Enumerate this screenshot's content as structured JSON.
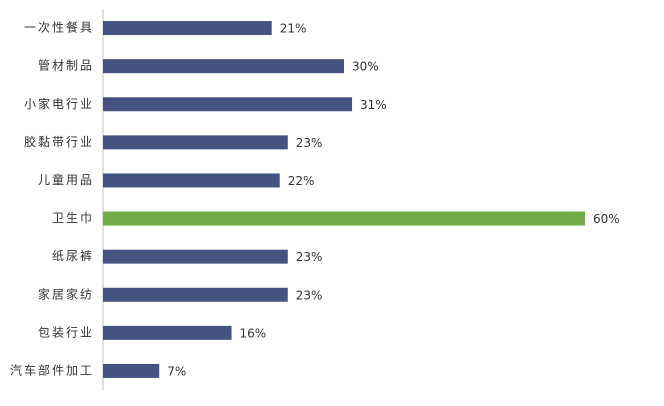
{
  "chart_data": {
    "type": "bar",
    "orientation": "horizontal",
    "categories": [
      "一次性餐具",
      "管材制品",
      "小家电行业",
      "胶黏带行业",
      "儿童用品",
      "卫生巾",
      "纸尿裤",
      "家居家纺",
      "包装行业",
      "汽车部件加工"
    ],
    "values": [
      21,
      30,
      31,
      23,
      22,
      60,
      23,
      23,
      16,
      7
    ],
    "value_labels": [
      "21%",
      "30%",
      "31%",
      "23%",
      "22%",
      "60%",
      "23%",
      "23%",
      "16%",
      "7%"
    ],
    "colors": [
      "#44537f",
      "#44537f",
      "#44537f",
      "#44537f",
      "#44537f",
      "#70ad47",
      "#44537f",
      "#44537f",
      "#44537f",
      "#44537f"
    ]
  }
}
